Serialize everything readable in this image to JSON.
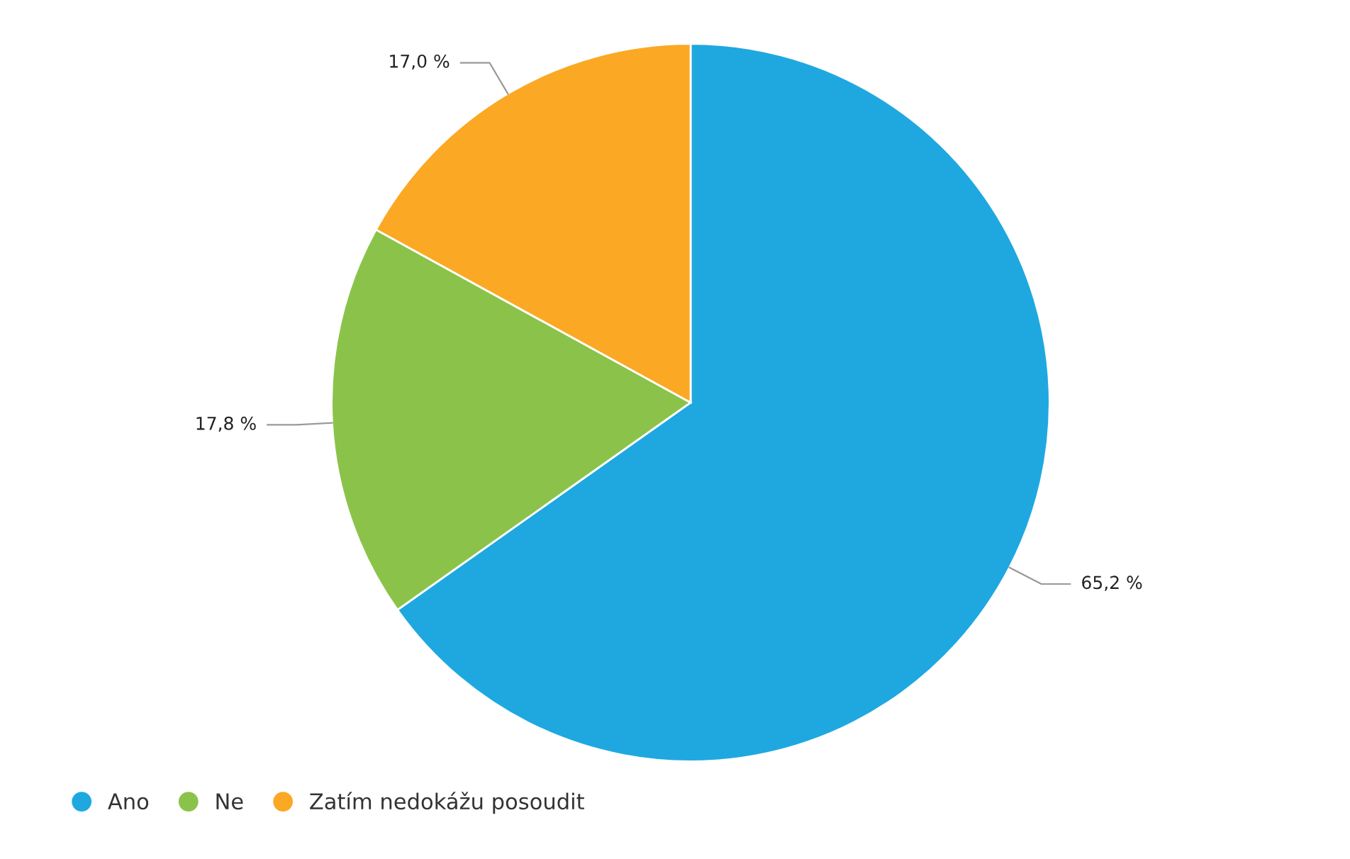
{
  "chart_data": {
    "type": "pie",
    "categories": [
      "Ano",
      "Ne",
      "Zatím nedokážu posoudit"
    ],
    "values": [
      65.2,
      17.8,
      17.0
    ],
    "value_labels": [
      "65,2 %",
      "17,8 %",
      "17,0 %"
    ],
    "colors": [
      "#1fa8e0",
      "#8bc34a",
      "#fba825"
    ],
    "legend": "bottom left"
  }
}
